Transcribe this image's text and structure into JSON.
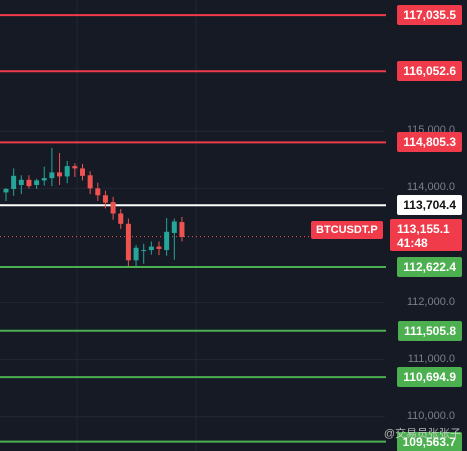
{
  "price_tag": {
    "symbol": "BTCUSDT.P",
    "price": "113,155.1",
    "countdown": "41:48"
  },
  "watermark": "@交易员张张子",
  "colors": {
    "up": "#26a69a",
    "down": "#ef5350",
    "resistance": "#ef3b4a",
    "support": "#4caf50",
    "current": "#ffffff",
    "background": "#161a25"
  },
  "chart_data": {
    "type": "candlestick",
    "price_range": [
      109400,
      117300
    ],
    "axis_labels": [
      {
        "price": 115000,
        "text": "115,000.0"
      },
      {
        "price": 114000,
        "text": "114,000.0"
      },
      {
        "price": 112000,
        "text": "112,000.0"
      },
      {
        "price": 111000,
        "text": "111,000.0"
      },
      {
        "price": 110000,
        "text": "110,000.0"
      }
    ],
    "levels": [
      {
        "price": 117035.5,
        "text": "117,035.5",
        "kind": "resistance"
      },
      {
        "price": 116052.6,
        "text": "116,052.6",
        "kind": "resistance"
      },
      {
        "price": 114805.3,
        "text": "114,805.3",
        "kind": "resistance"
      },
      {
        "price": 113704.4,
        "text": "113,704.4",
        "kind": "current"
      },
      {
        "price": 112622.4,
        "text": "112,622.4",
        "kind": "support"
      },
      {
        "price": 111505.8,
        "text": "111,505.8",
        "kind": "support"
      },
      {
        "price": 110694.9,
        "text": "110,694.9",
        "kind": "support"
      },
      {
        "price": 109563.7,
        "text": "109,563.7",
        "kind": "support"
      }
    ],
    "last_price": 113155.1,
    "candles": [
      {
        "o": 113930,
        "h": 114010,
        "l": 113780,
        "c": 113990
      },
      {
        "o": 113990,
        "h": 114350,
        "l": 113870,
        "c": 114220
      },
      {
        "o": 114060,
        "h": 114230,
        "l": 113900,
        "c": 114150
      },
      {
        "o": 114150,
        "h": 114230,
        "l": 114000,
        "c": 114040
      },
      {
        "o": 114060,
        "h": 114170,
        "l": 113990,
        "c": 114140
      },
      {
        "o": 114140,
        "h": 114380,
        "l": 114050,
        "c": 114180
      },
      {
        "o": 114180,
        "h": 114710,
        "l": 114040,
        "c": 114280
      },
      {
        "o": 114280,
        "h": 114620,
        "l": 114060,
        "c": 114210
      },
      {
        "o": 114210,
        "h": 114480,
        "l": 114090,
        "c": 114390
      },
      {
        "o": 114390,
        "h": 114440,
        "l": 114200,
        "c": 114350
      },
      {
        "o": 114350,
        "h": 114430,
        "l": 114140,
        "c": 114220
      },
      {
        "o": 114230,
        "h": 114300,
        "l": 113900,
        "c": 114000
      },
      {
        "o": 114000,
        "h": 114100,
        "l": 113780,
        "c": 113880
      },
      {
        "o": 113880,
        "h": 113960,
        "l": 113650,
        "c": 113750
      },
      {
        "o": 113760,
        "h": 113850,
        "l": 113450,
        "c": 113560
      },
      {
        "o": 113560,
        "h": 113640,
        "l": 113290,
        "c": 113380
      },
      {
        "o": 113380,
        "h": 113470,
        "l": 112640,
        "c": 112740
      },
      {
        "o": 112740,
        "h": 113010,
        "l": 112640,
        "c": 112960
      },
      {
        "o": 112920,
        "h": 113030,
        "l": 112680,
        "c": 112920
      },
      {
        "o": 112920,
        "h": 113070,
        "l": 112840,
        "c": 112980
      },
      {
        "o": 112980,
        "h": 113070,
        "l": 112830,
        "c": 112940
      },
      {
        "o": 112920,
        "h": 113480,
        "l": 112820,
        "c": 113240
      },
      {
        "o": 113220,
        "h": 113470,
        "l": 112750,
        "c": 113420
      },
      {
        "o": 113410,
        "h": 113500,
        "l": 113070,
        "c": 113150
      }
    ]
  }
}
